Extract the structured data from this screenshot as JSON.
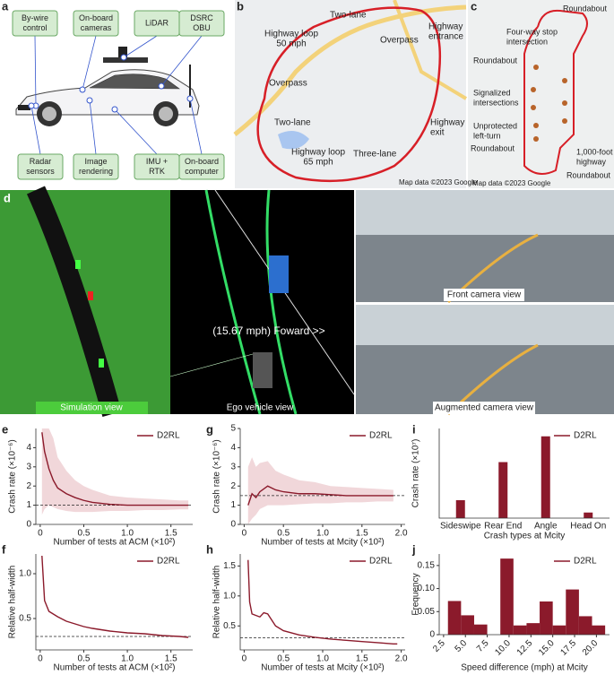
{
  "panel_a": {
    "label": "a",
    "boxes": [
      [
        "By-wire",
        "control"
      ],
      [
        "On-board",
        "cameras"
      ],
      [
        "LiDAR"
      ],
      [
        "DSRC",
        "OBU"
      ],
      [
        "Radar",
        "sensors"
      ],
      [
        "Image",
        "rendering"
      ],
      [
        "IMU +",
        "RTK"
      ],
      [
        "On-board",
        "computer"
      ]
    ]
  },
  "panel_b": {
    "label": "b",
    "annotations": [
      [
        "Two-lane"
      ],
      [
        "Highway loop",
        "50 mph"
      ],
      [
        "Overpass"
      ],
      [
        "Highway",
        "entrance"
      ],
      [
        "Overpass"
      ],
      [
        "Two-lane"
      ],
      [
        "Highway",
        "exit"
      ],
      [
        "Highway loop",
        "65 mph"
      ],
      [
        "Three-lane"
      ]
    ],
    "credit": "Map data ©2023 Google"
  },
  "panel_c": {
    "label": "c",
    "annotations": [
      [
        "Roundabout"
      ],
      [
        "Four-way stop",
        "intersection"
      ],
      [
        "Roundabout"
      ],
      [
        "Signalized",
        "intersections"
      ],
      [
        "Unprotected",
        "left-turn"
      ],
      [
        "Roundabout"
      ],
      [
        "1,000-foot",
        "highway"
      ],
      [
        "Roundabout"
      ]
    ],
    "credit": "Map data ©2023 Google"
  },
  "panel_d": {
    "label": "d",
    "views": [
      "Simulation view",
      "Ego vehicle view",
      "Front camera view",
      "Augmented camera view"
    ],
    "overlay": "(15.67 mph) Foward >>"
  },
  "chart_data": [
    {
      "type": "line",
      "panel_label": "e",
      "x_label": "Number of tests at ACM (×10²)",
      "y_label": "Crash rate (×10⁻⁶)",
      "x": [
        0.02,
        0.05,
        0.1,
        0.15,
        0.2,
        0.3,
        0.4,
        0.5,
        0.6,
        0.8,
        1.0,
        1.2,
        1.4,
        1.6,
        1.7
      ],
      "series": [
        {
          "name": "D2RL",
          "color": "#8b1a2b",
          "values": [
            4.8,
            3.8,
            2.9,
            2.3,
            1.9,
            1.6,
            1.4,
            1.25,
            1.15,
            1.05,
            1.0,
            1.0,
            1.0,
            1.0,
            1.0
          ],
          "upper": [
            5,
            5,
            5,
            4.5,
            3.5,
            2.8,
            2.3,
            2.0,
            1.8,
            1.5,
            1.4,
            1.35,
            1.3,
            1.25,
            1.25
          ],
          "lower": [
            0.5,
            0.8,
            1.0,
            0.9,
            0.8,
            0.7,
            0.65,
            0.65,
            0.65,
            0.7,
            0.7,
            0.75,
            0.75,
            0.78,
            0.78
          ]
        }
      ],
      "reference": 1.0,
      "xlim": [
        -0.05,
        1.75
      ],
      "xticks": [
        0,
        0.5,
        {
          "value": 1,
          "label": "1.0"
        },
        1.5
      ],
      "ylim": [
        0,
        5
      ],
      "yticks": [
        0,
        1,
        2,
        3,
        4
      ]
    },
    {
      "type": "line",
      "panel_label": "f",
      "x_label": "Number of tests at ACM (×10²)",
      "y_label": "Relative half-width",
      "x": [
        0.02,
        0.05,
        0.1,
        0.2,
        0.3,
        0.4,
        0.5,
        0.6,
        0.8,
        1.0,
        1.2,
        1.4,
        1.6,
        1.7
      ],
      "series": [
        {
          "name": "D2RL",
          "color": "#8b1a2b",
          "values": [
            1.2,
            0.7,
            0.58,
            0.52,
            0.47,
            0.44,
            0.41,
            0.39,
            0.36,
            0.34,
            0.33,
            0.31,
            0.3,
            0.29
          ]
        }
      ],
      "reference": 0.3,
      "xlim": [
        -0.05,
        1.75
      ],
      "xticks": [
        0,
        0.5,
        {
          "value": 1,
          "label": "1.0"
        },
        1.5
      ],
      "ylim": [
        0.15,
        1.22
      ],
      "yticks": [
        0.5,
        {
          "value": 1,
          "label": "1.0"
        }
      ]
    },
    {
      "type": "line",
      "panel_label": "g",
      "x_label": "Number of tests at Mcity (×10²)",
      "y_label": "Crash rate (×10⁻⁶)",
      "x": [
        0.05,
        0.1,
        0.15,
        0.2,
        0.3,
        0.4,
        0.5,
        0.7,
        0.9,
        1.1,
        1.3,
        1.5,
        1.7,
        1.9
      ],
      "series": [
        {
          "name": "D2RL",
          "color": "#8b1a2b",
          "values": [
            1.0,
            1.6,
            1.4,
            1.7,
            2.0,
            1.8,
            1.7,
            1.6,
            1.6,
            1.55,
            1.5,
            1.5,
            1.5,
            1.5
          ],
          "upper": [
            3,
            3.5,
            3,
            3.2,
            3.3,
            2.8,
            2.6,
            2.3,
            2.2,
            2.0,
            1.95,
            1.9,
            1.85,
            1.8
          ],
          "lower": [
            0,
            0.3,
            0.5,
            0.8,
            1.0,
            1.0,
            1.0,
            1.05,
            1.1,
            1.1,
            1.15,
            1.15,
            1.2,
            1.2
          ]
        }
      ],
      "reference": 1.5,
      "xlim": [
        -0.05,
        2.05
      ],
      "xticks": [
        0,
        0.5,
        {
          "value": 1,
          "label": "1.0"
        },
        1.5,
        {
          "value": 2,
          "label": "2.0"
        }
      ],
      "ylim": [
        0,
        5
      ],
      "yticks": [
        0,
        1,
        2,
        3,
        4,
        5
      ]
    },
    {
      "type": "line",
      "panel_label": "h",
      "x_label": "Number of tests at Mcity (×10²)",
      "y_label": "Relative half-width",
      "x": [
        0.05,
        0.07,
        0.1,
        0.2,
        0.25,
        0.3,
        0.4,
        0.5,
        0.7,
        0.9,
        1.1,
        1.3,
        1.5,
        1.7,
        1.9,
        1.95
      ],
      "series": [
        {
          "name": "D2RL",
          "color": "#8b1a2b",
          "values": [
            1.6,
            0.9,
            0.7,
            0.65,
            0.72,
            0.7,
            0.5,
            0.42,
            0.35,
            0.31,
            0.28,
            0.26,
            0.24,
            0.22,
            0.2,
            0.2
          ]
        }
      ],
      "reference": 0.3,
      "xlim": [
        -0.05,
        2.05
      ],
      "xticks": [
        0,
        0.5,
        {
          "value": 1,
          "label": "1.0"
        },
        1.5,
        {
          "value": 2,
          "label": "2.0"
        }
      ],
      "ylim": [
        0.1,
        1.7
      ],
      "yticks": [
        0.5,
        {
          "value": 1,
          "label": "1.0"
        },
        1.5
      ]
    },
    {
      "type": "bar",
      "panel_label": "i",
      "x_label": "Crash types at Mcity",
      "y_label": "Crash rate (×10⁷)",
      "categories": [
        "Sideswipe",
        "Rear End",
        "Angle",
        "Head On"
      ],
      "series": [
        {
          "name": "D2RL",
          "color": "#8b1a2b",
          "values": [
            1.6,
            5.0,
            7.3,
            0.5
          ]
        }
      ],
      "ylim": [
        0,
        8
      ]
    },
    {
      "type": "histogram",
      "panel_label": "j",
      "x_label": "Speed difference (mph) at Mcity",
      "y_label": "Frequency",
      "bins": [
        3,
        4.5,
        6,
        7.5,
        9,
        10.5,
        12,
        13.5,
        15,
        16.5,
        18,
        19.5,
        21
      ],
      "series": [
        {
          "name": "D2RL",
          "color": "#8b1a2b",
          "values": [
            0.073,
            0.042,
            0.022,
            0,
            0.165,
            0.02,
            0.025,
            0.072,
            0.02,
            0.098,
            0.04,
            0.02
          ]
        }
      ],
      "xlim": [
        2,
        21.5
      ],
      "xticks": [
        2.5,
        {
          "value": 5,
          "label": "5.0"
        },
        7.5,
        {
          "value": 10,
          "label": "10.0"
        },
        12.5,
        {
          "value": 15,
          "label": "15.0"
        },
        17.5,
        {
          "value": 20,
          "label": "20.0"
        }
      ],
      "ylim": [
        0,
        0.175
      ],
      "yticks": [
        0,
        0.05,
        {
          "value": 0.1,
          "label": "0.10"
        },
        0.15
      ]
    }
  ]
}
